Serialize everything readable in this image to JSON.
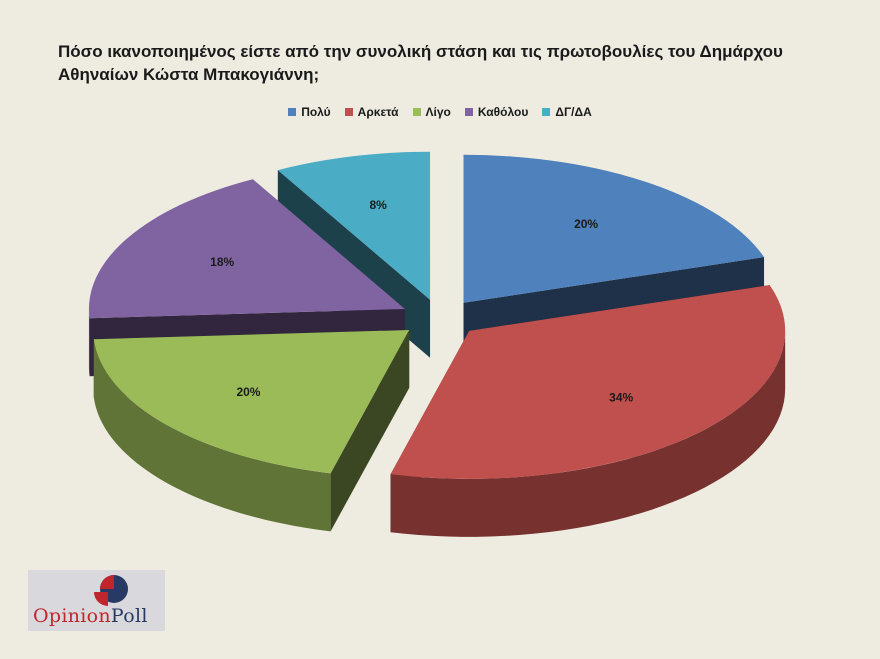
{
  "title_line1": "Πόσο ικανοποιημένος είστε από την συνολική στάση και τις πρωτοβουλίες του Δημάρχου",
  "title_line2": "Αθηναίων Κώστα Μπακογιάννη;",
  "chart_data": {
    "type": "pie",
    "title": "Πόσο ικανοποιημένος είστε από την συνολική στάση και τις πρωτοβουλίες του Δημάρχου Αθηναίων Κώστα Μπακογιάννη;",
    "legend_position": "top",
    "exploded": true,
    "three_d": true,
    "slices": [
      {
        "label": "Πολύ",
        "value": 20,
        "display": "20%",
        "color": "#4f81bd"
      },
      {
        "label": "Αρκετά",
        "value": 34,
        "display": "34%",
        "color": "#c0504d"
      },
      {
        "label": "Λίγο",
        "value": 20,
        "display": "20%",
        "color": "#9bbb59"
      },
      {
        "label": "Καθόλου",
        "value": 18,
        "display": "18%",
        "color": "#8064a2"
      },
      {
        "label": "ΔΓ/ΔΑ",
        "value": 8,
        "display": "8%",
        "color": "#4bacc6"
      }
    ]
  },
  "logo": {
    "part1": "Opinion",
    "part2": "Poll"
  }
}
